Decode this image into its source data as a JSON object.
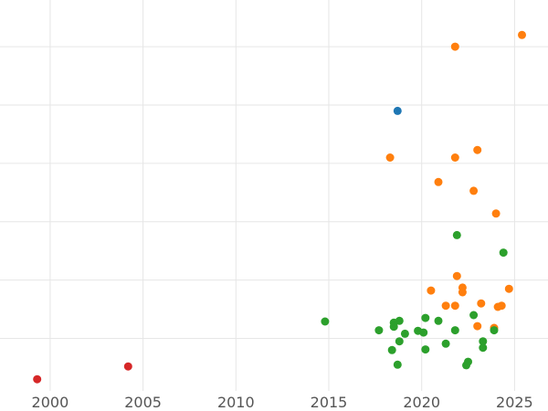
{
  "chart_data": {
    "type": "scatter",
    "title": "",
    "xlabel": "",
    "ylabel": "",
    "xlim": [
      1997.3,
      2026.8
    ],
    "ylim": [
      -0.4,
      6.3
    ],
    "grid": true,
    "x_ticks": [
      2000,
      2005,
      2010,
      2015,
      2020,
      2025
    ],
    "x_tick_labels": [
      "2000",
      "2005",
      "2010",
      "2015",
      "2020",
      "2025"
    ],
    "y_gridlines": [
      0.5,
      1.5,
      2.5,
      3.5,
      4.5,
      5.5
    ],
    "series": [
      {
        "name": "blue",
        "color": "#1f77b4",
        "points": [
          [
            2018.7,
            4.4
          ]
        ]
      },
      {
        "name": "orange",
        "color": "#ff7f0e",
        "points": [
          [
            2025.4,
            5.7
          ],
          [
            2021.8,
            5.5
          ],
          [
            2018.3,
            3.6
          ],
          [
            2021.8,
            3.6
          ],
          [
            2023.0,
            3.73
          ],
          [
            2020.9,
            3.18
          ],
          [
            2022.8,
            3.03
          ],
          [
            2024.0,
            2.64
          ],
          [
            2021.9,
            1.57
          ],
          [
            2022.2,
            1.37
          ],
          [
            2022.2,
            1.29
          ],
          [
            2020.5,
            1.32
          ],
          [
            2024.7,
            1.35
          ],
          [
            2023.2,
            1.1
          ],
          [
            2021.3,
            1.06
          ],
          [
            2021.8,
            1.06
          ],
          [
            2024.1,
            1.04
          ],
          [
            2024.3,
            1.06
          ],
          [
            2023.0,
            0.71
          ],
          [
            2023.9,
            0.68
          ]
        ]
      },
      {
        "name": "green",
        "color": "#2ca02c",
        "points": [
          [
            2021.9,
            2.27
          ],
          [
            2024.4,
            1.97
          ],
          [
            2014.8,
            0.79
          ],
          [
            2017.7,
            0.64
          ],
          [
            2018.5,
            0.7
          ],
          [
            2018.5,
            0.77
          ],
          [
            2018.8,
            0.8
          ],
          [
            2020.2,
            0.85
          ],
          [
            2020.9,
            0.8
          ],
          [
            2022.8,
            0.9
          ],
          [
            2019.8,
            0.63
          ],
          [
            2020.1,
            0.6
          ],
          [
            2021.8,
            0.64
          ],
          [
            2023.9,
            0.64
          ],
          [
            2019.1,
            0.58
          ],
          [
            2018.8,
            0.45
          ],
          [
            2021.3,
            0.41
          ],
          [
            2023.3,
            0.45
          ],
          [
            2018.4,
            0.3
          ],
          [
            2020.2,
            0.31
          ],
          [
            2023.3,
            0.34
          ],
          [
            2022.5,
            0.1
          ],
          [
            2022.4,
            0.04
          ],
          [
            2018.7,
            0.05
          ]
        ]
      },
      {
        "name": "red",
        "color": "#d62728",
        "points": [
          [
            1999.3,
            -0.2
          ],
          [
            2004.2,
            0.02
          ]
        ]
      }
    ]
  }
}
